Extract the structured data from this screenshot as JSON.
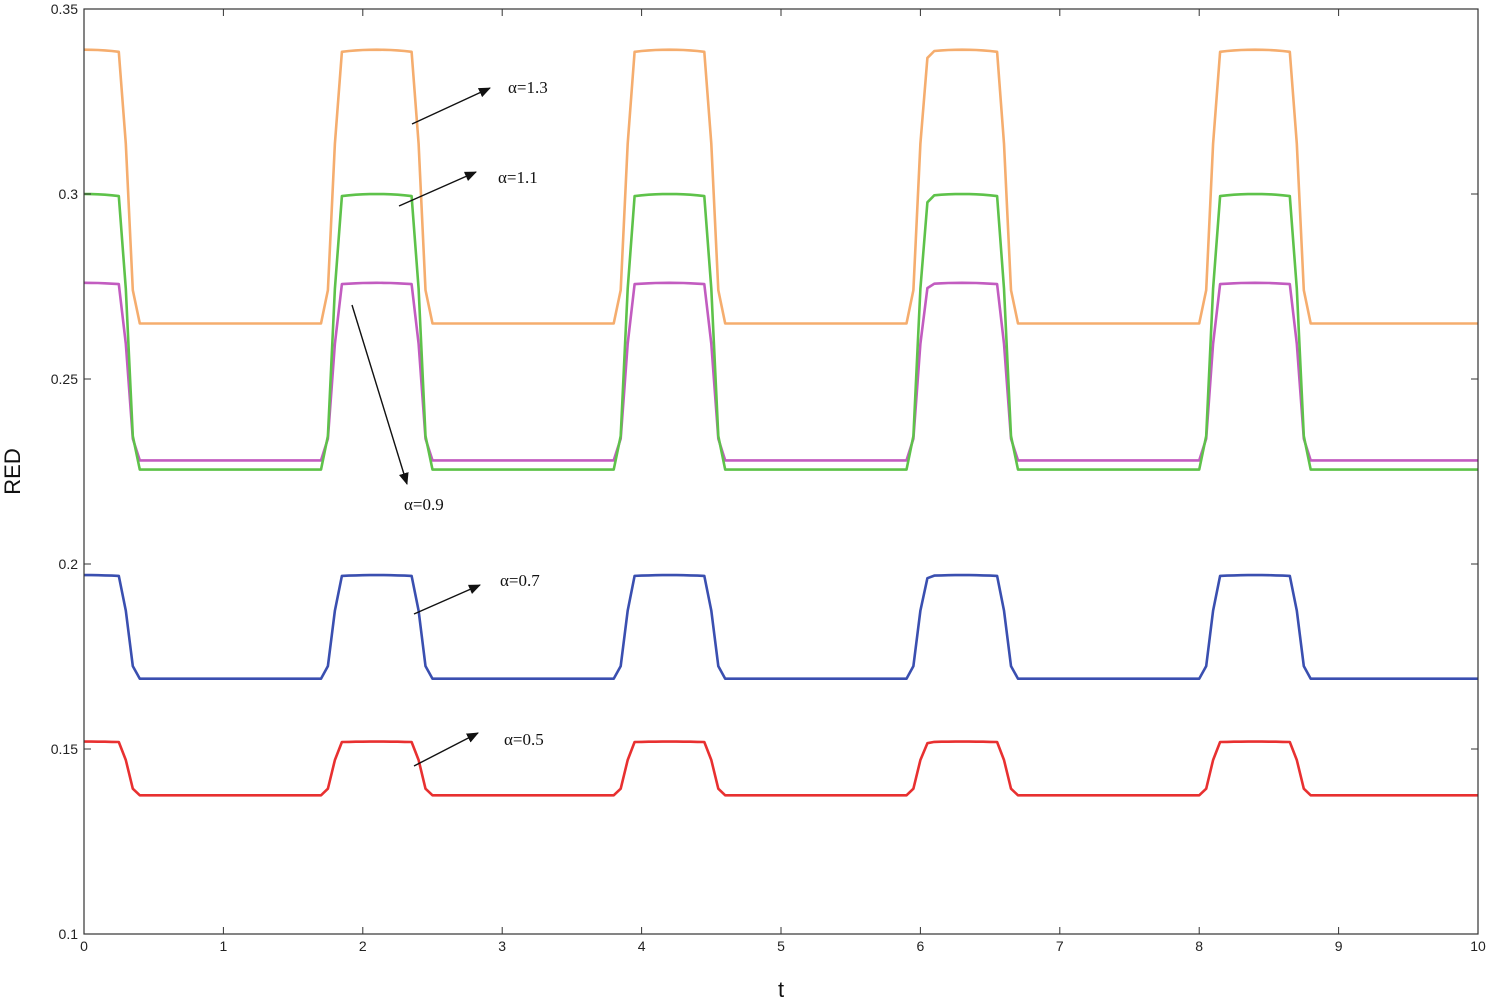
{
  "chart_data": {
    "type": "line",
    "xlabel": "t",
    "ylabel": "RED",
    "xlim": [
      0,
      10
    ],
    "ylim": [
      0.1,
      0.35
    ],
    "xticks": [
      "0",
      "1",
      "2",
      "3",
      "4",
      "5",
      "6",
      "7",
      "8",
      "9",
      "10"
    ],
    "yticks": [
      "0.1",
      "0.15",
      "0.2",
      "0.25",
      "0.3",
      "0.35"
    ],
    "grid": false,
    "period": 2.1,
    "series": [
      {
        "name": "α=0.5",
        "label": "α=0.5",
        "color": "#e83030",
        "high": 0.152,
        "low": 0.1375
      },
      {
        "name": "α=0.7",
        "label": "α=0.7",
        "color": "#3a4fb0",
        "high": 0.197,
        "low": 0.169
      },
      {
        "name": "α=0.9",
        "label": "α=0.9",
        "color": "#c25cc0",
        "high": 0.276,
        "low": 0.228
      },
      {
        "name": "α=1.1",
        "label": "α=1.1",
        "color": "#5ec24a",
        "high": 0.3,
        "low": 0.2255
      },
      {
        "name": "α=1.3",
        "label": "α=1.3",
        "color": "#f5ad6e",
        "high": 0.339,
        "low": 0.265
      }
    ]
  }
}
